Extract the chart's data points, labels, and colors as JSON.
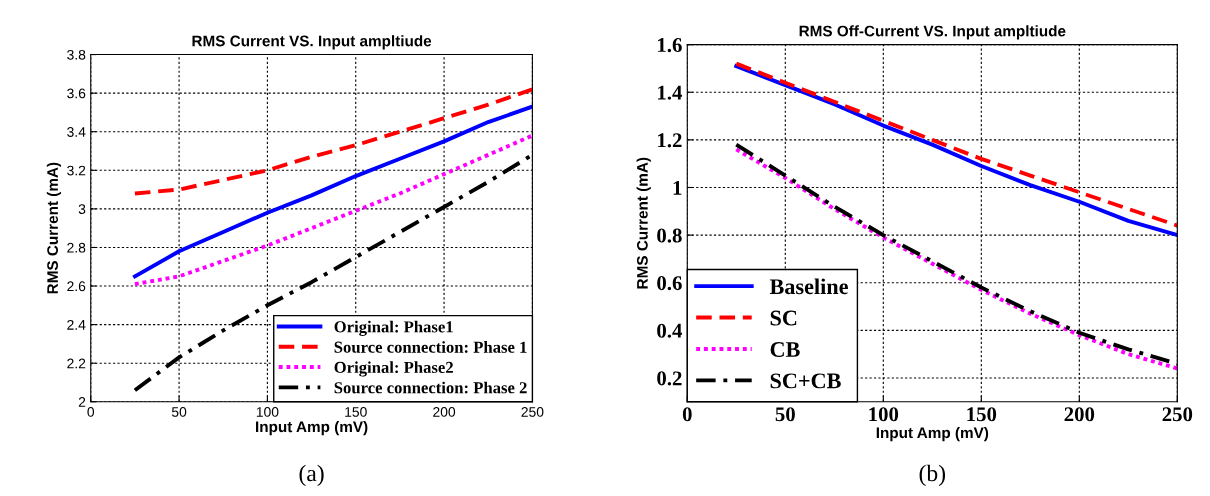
{
  "chart_data": [
    {
      "type": "line",
      "title": "RMS Current VS. Input ampltiude",
      "xlabel": "Input Amp (mV)",
      "ylabel": "RMS Current (mA)",
      "annotations": [
        "(a)"
      ],
      "x": [
        25,
        50,
        75,
        100,
        125,
        150,
        175,
        200,
        225,
        250
      ],
      "xlim": [
        0,
        250
      ],
      "xticks": [
        0,
        50,
        100,
        150,
        200,
        250
      ],
      "ylim": [
        2,
        3.8
      ],
      "yticks": [
        2,
        2.2,
        2.4,
        2.6,
        2.8,
        3,
        3.2,
        3.4,
        3.6,
        3.8
      ],
      "grid": true,
      "legend": "bottom right",
      "series": [
        {
          "name": "Original: Phase1",
          "color": "#0000ff",
          "line_style": "solid",
          "values": [
            2.65,
            2.78,
            2.88,
            2.98,
            3.07,
            3.17,
            3.26,
            3.35,
            3.45,
            3.53
          ]
        },
        {
          "name": "Source connection: Phase 1",
          "color": "#ff0000",
          "line_style": "dashed",
          "values": [
            3.08,
            3.1,
            3.15,
            3.2,
            3.27,
            3.33,
            3.4,
            3.47,
            3.54,
            3.62
          ]
        },
        {
          "name": "Original: Phase2",
          "color": "#ff00ff",
          "line_style": "dotted",
          "values": [
            2.61,
            2.65,
            2.73,
            2.81,
            2.9,
            2.99,
            3.08,
            3.18,
            3.28,
            3.38
          ]
        },
        {
          "name": "Source connection: Phase 2",
          "color": "#000000",
          "line_style": "dashdot",
          "values": [
            2.06,
            2.23,
            2.37,
            2.5,
            2.62,
            2.75,
            2.88,
            3.01,
            3.14,
            3.28
          ]
        }
      ]
    },
    {
      "type": "line",
      "title": "RMS Off-Current VS. Input ampltiude",
      "xlabel": "Input Amp (mV)",
      "ylabel": "RMS Current (mA)",
      "annotations": [
        "(b)"
      ],
      "x": [
        25,
        50,
        75,
        100,
        125,
        150,
        175,
        200,
        225,
        250
      ],
      "xlim": [
        0,
        250
      ],
      "xticks": [
        0,
        50,
        100,
        150,
        200,
        250
      ],
      "ylim": [
        0.1,
        1.6
      ],
      "yticks": [
        0.2,
        0.4,
        0.6,
        0.8,
        1,
        1.2,
        1.4,
        1.6
      ],
      "grid": true,
      "legend": "bottom left",
      "series": [
        {
          "name": "Baseline",
          "color": "#0000ff",
          "line_style": "solid",
          "values": [
            1.51,
            1.43,
            1.35,
            1.26,
            1.18,
            1.09,
            1.01,
            0.94,
            0.86,
            0.8
          ]
        },
        {
          "name": "SC",
          "color": "#ff0000",
          "line_style": "dashed",
          "values": [
            1.52,
            1.44,
            1.36,
            1.28,
            1.2,
            1.12,
            1.05,
            0.98,
            0.91,
            0.84
          ]
        },
        {
          "name": "CB",
          "color": "#ff00ff",
          "line_style": "dotted",
          "values": [
            1.16,
            1.04,
            0.91,
            0.79,
            0.68,
            0.57,
            0.47,
            0.38,
            0.3,
            0.24
          ]
        },
        {
          "name": "SC+CB",
          "color": "#000000",
          "line_style": "dashdot",
          "values": [
            1.18,
            1.05,
            0.92,
            0.8,
            0.69,
            0.58,
            0.48,
            0.39,
            0.32,
            0.26
          ]
        }
      ]
    }
  ]
}
